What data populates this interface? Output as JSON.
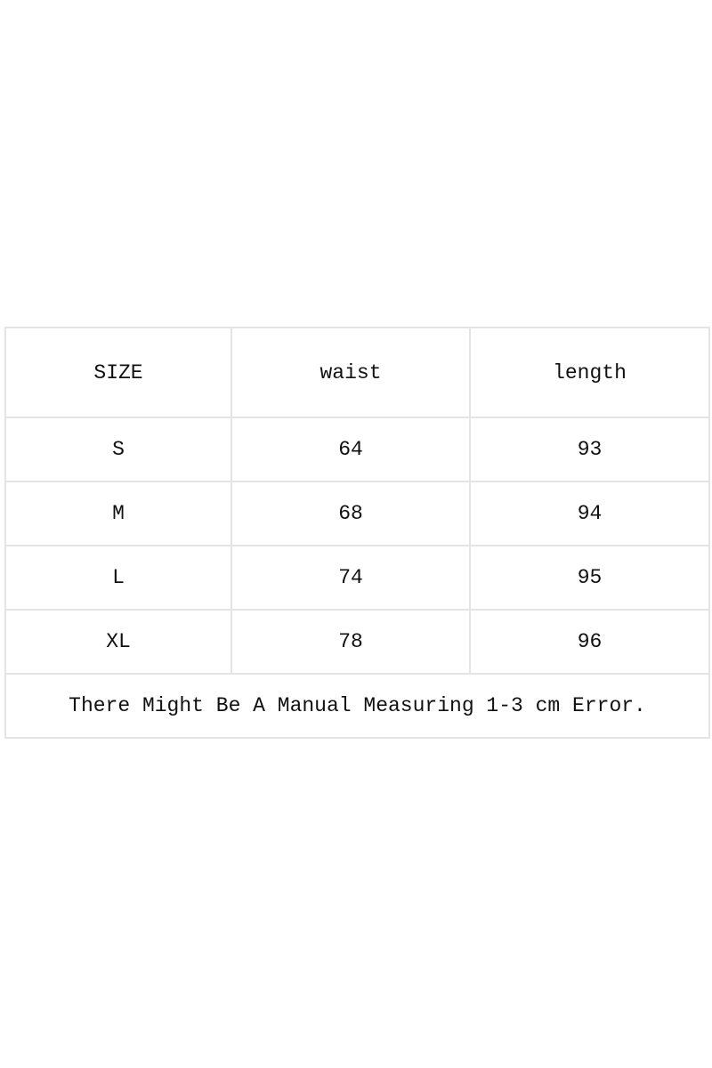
{
  "table": {
    "headers": [
      "SIZE",
      "waist",
      "length"
    ],
    "rows": [
      [
        "S",
        "64",
        "93"
      ],
      [
        "M",
        "68",
        "94"
      ],
      [
        "L",
        "74",
        "95"
      ],
      [
        "XL",
        "78",
        "96"
      ]
    ],
    "note": "There Might Be A Manual Measuring 1-3 cm Error."
  }
}
